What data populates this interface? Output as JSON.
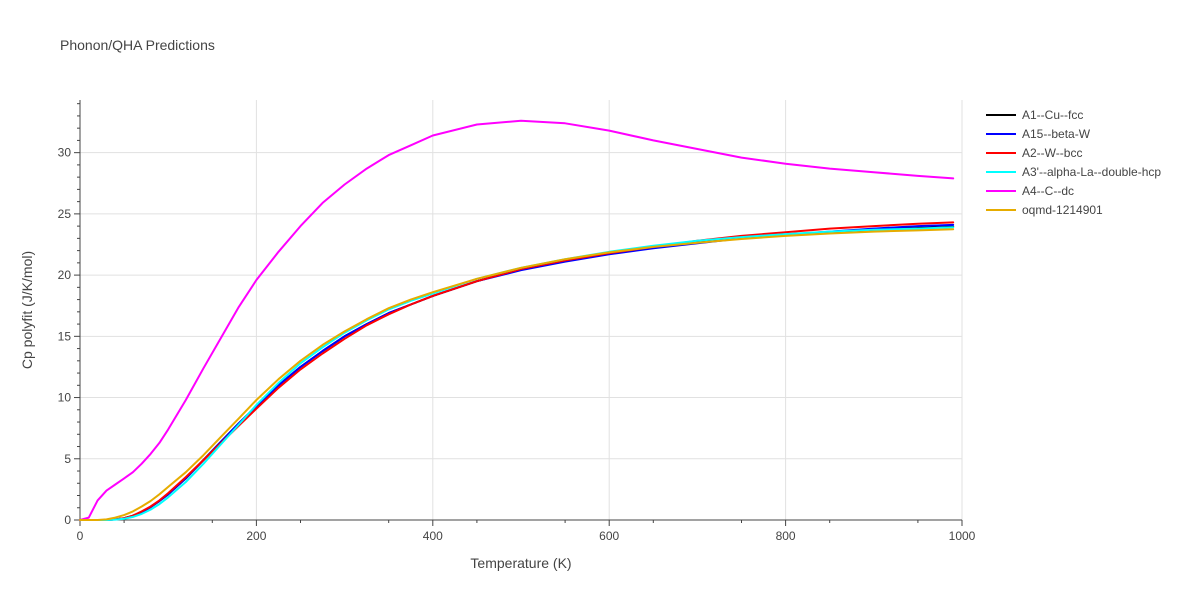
{
  "chart_data": {
    "type": "line",
    "title": "Phonon/QHA Predictions",
    "xlabel": "Temperature (K)",
    "ylabel": "Cp polyfit (J/K/mol)",
    "xlim": [
      0,
      1000
    ],
    "ylim": [
      0,
      34.3
    ],
    "x_ticks": [
      0,
      200,
      400,
      600,
      800,
      1000
    ],
    "y_ticks": [
      0,
      5,
      10,
      15,
      20,
      25,
      30
    ],
    "grid": true,
    "legend_position": "top-right",
    "x": [
      0,
      10,
      20,
      30,
      40,
      50,
      60,
      70,
      80,
      90,
      100,
      120,
      140,
      160,
      180,
      200,
      225,
      250,
      275,
      300,
      325,
      350,
      375,
      400,
      450,
      500,
      550,
      600,
      650,
      700,
      750,
      800,
      850,
      900,
      950,
      990
    ],
    "series": [
      {
        "name": "A1--Cu--fcc",
        "color": "#000000",
        "values": [
          0,
          0,
          0,
          0,
          0.05,
          0.15,
          0.35,
          0.65,
          1.05,
          1.55,
          2.1,
          3.4,
          4.9,
          6.4,
          7.9,
          9.3,
          11.0,
          12.5,
          13.8,
          15.0,
          16.0,
          16.9,
          17.6,
          18.3,
          19.5,
          20.5,
          21.2,
          21.8,
          22.3,
          22.7,
          23.0,
          23.3,
          23.5,
          23.7,
          23.85,
          23.95
        ]
      },
      {
        "name": "A15--beta-W",
        "color": "#0000ff",
        "values": [
          0,
          0,
          0,
          0,
          0.05,
          0.15,
          0.35,
          0.65,
          1.05,
          1.55,
          2.1,
          3.4,
          4.9,
          6.4,
          7.9,
          9.3,
          11.0,
          12.5,
          13.8,
          15.0,
          16.0,
          16.9,
          17.6,
          18.3,
          19.5,
          20.4,
          21.1,
          21.7,
          22.2,
          22.6,
          23.0,
          23.3,
          23.55,
          23.8,
          24.0,
          24.1
        ]
      },
      {
        "name": "A2--W--bcc",
        "color": "#ff0000",
        "values": [
          0,
          0,
          0,
          0,
          0.05,
          0.15,
          0.35,
          0.7,
          1.1,
          1.6,
          2.2,
          3.5,
          4.9,
          6.3,
          7.7,
          9.1,
          10.8,
          12.3,
          13.6,
          14.8,
          15.9,
          16.8,
          17.6,
          18.3,
          19.5,
          20.5,
          21.2,
          21.8,
          22.3,
          22.8,
          23.2,
          23.5,
          23.8,
          24.0,
          24.2,
          24.3
        ]
      },
      {
        "name": "A3'--alpha-La--double-hcp",
        "color": "#00ffff",
        "values": [
          0,
          0,
          0,
          0,
          0.03,
          0.1,
          0.25,
          0.5,
          0.85,
          1.3,
          1.85,
          3.1,
          4.6,
          6.2,
          7.8,
          9.4,
          11.2,
          12.8,
          14.1,
          15.3,
          16.3,
          17.2,
          17.9,
          18.5,
          19.7,
          20.6,
          21.3,
          21.9,
          22.4,
          22.8,
          23.1,
          23.35,
          23.55,
          23.7,
          23.8,
          23.9
        ]
      },
      {
        "name": "A4--C--dc",
        "color": "#ff00ff",
        "values": [
          0,
          0.2,
          1.6,
          2.4,
          2.9,
          3.4,
          3.9,
          4.6,
          5.4,
          6.3,
          7.4,
          9.8,
          12.4,
          14.9,
          17.4,
          19.6,
          21.9,
          24.0,
          25.9,
          27.4,
          28.7,
          29.8,
          30.6,
          31.4,
          32.3,
          32.6,
          32.4,
          31.8,
          31.0,
          30.3,
          29.6,
          29.1,
          28.7,
          28.4,
          28.1,
          27.9
        ]
      },
      {
        "name": "oqmd-1214901",
        "color": "#e6ac00",
        "values": [
          0,
          0,
          0,
          0.05,
          0.2,
          0.4,
          0.7,
          1.1,
          1.55,
          2.1,
          2.7,
          3.9,
          5.3,
          6.8,
          8.3,
          9.8,
          11.5,
          13.0,
          14.3,
          15.4,
          16.4,
          17.3,
          18.0,
          18.6,
          19.7,
          20.6,
          21.3,
          21.85,
          22.3,
          22.65,
          22.95,
          23.2,
          23.4,
          23.55,
          23.65,
          23.75
        ]
      }
    ]
  }
}
